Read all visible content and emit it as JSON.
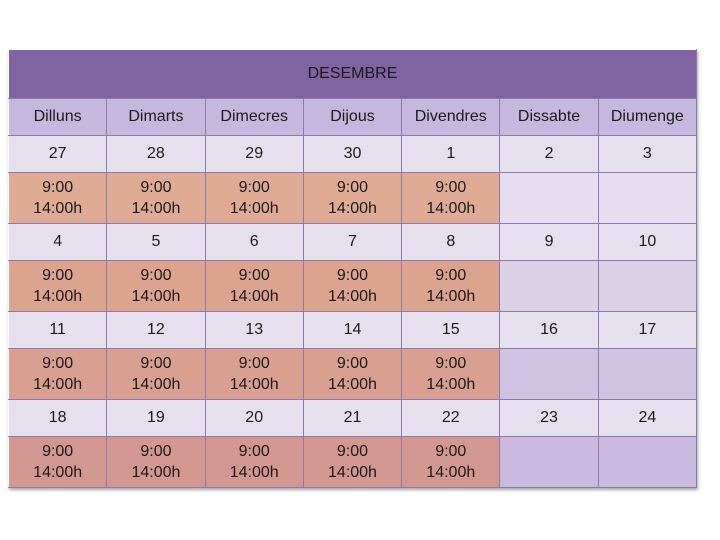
{
  "month": "DESEMBRE",
  "weekdays": [
    "Dilluns",
    "Dimarts",
    "Dimecres",
    "Dijous",
    "Divendres",
    "Dissabte",
    "Diumenge"
  ],
  "weeks": [
    {
      "dates": [
        "27",
        "28",
        "29",
        "30",
        "1",
        "2",
        "3"
      ],
      "hours": [
        {
          "open": "9:00",
          "close": "14:00h"
        },
        {
          "open": "9:00",
          "close": "14:00h"
        },
        {
          "open": "9:00",
          "close": "14:00h"
        },
        {
          "open": "9:00",
          "close": "14:00h"
        },
        {
          "open": "9:00",
          "close": "14:00h"
        },
        {
          "open": "",
          "close": ""
        },
        {
          "open": "",
          "close": ""
        }
      ]
    },
    {
      "dates": [
        "4",
        "5",
        "6",
        "7",
        "8",
        "9",
        "10"
      ],
      "hours": [
        {
          "open": "9:00",
          "close": "14:00h"
        },
        {
          "open": "9:00",
          "close": "14:00h"
        },
        {
          "open": "9:00",
          "close": "14:00h"
        },
        {
          "open": "9:00",
          "close": "14:00h"
        },
        {
          "open": "9:00",
          "close": "14:00h"
        },
        {
          "open": "",
          "close": ""
        },
        {
          "open": "",
          "close": ""
        }
      ]
    },
    {
      "dates": [
        "11",
        "12",
        "13",
        "14",
        "15",
        "16",
        "17"
      ],
      "hours": [
        {
          "open": "9:00",
          "close": "14:00h"
        },
        {
          "open": "9:00",
          "close": "14:00h"
        },
        {
          "open": "9:00",
          "close": "14:00h"
        },
        {
          "open": "9:00",
          "close": "14:00h"
        },
        {
          "open": "9:00",
          "close": "14:00h"
        },
        {
          "open": "",
          "close": ""
        },
        {
          "open": "",
          "close": ""
        }
      ]
    },
    {
      "dates": [
        "18",
        "19",
        "20",
        "21",
        "22",
        "23",
        "24"
      ],
      "hours": [
        {
          "open": "9:00",
          "close": "14:00h"
        },
        {
          "open": "9:00",
          "close": "14:00h"
        },
        {
          "open": "9:00",
          "close": "14:00h"
        },
        {
          "open": "9:00",
          "close": "14:00h"
        },
        {
          "open": "9:00",
          "close": "14:00h"
        },
        {
          "open": "",
          "close": ""
        },
        {
          "open": "",
          "close": ""
        }
      ]
    }
  ],
  "colors": {
    "title_bg": "#8064a2",
    "header_bg": "#c5b8dc",
    "date_row_bg": "#e6e0ee",
    "working_bg": "#dca48f",
    "free_bg": "#d0c2e2"
  }
}
